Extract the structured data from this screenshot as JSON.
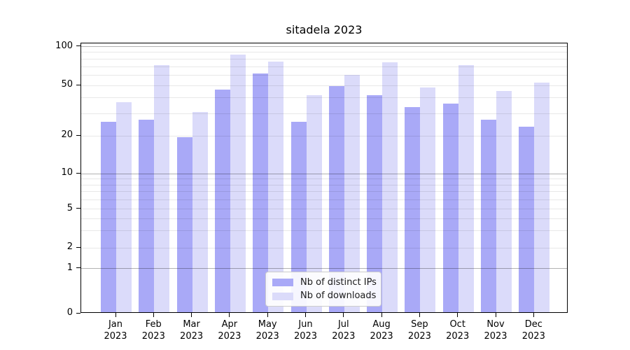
{
  "chart_data": {
    "type": "bar",
    "title": "sitadela 2023",
    "categories": [
      "Jan 2023",
      "Feb 2023",
      "Mar 2023",
      "Apr 2023",
      "May 2023",
      "Jun 2023",
      "Jul 2023",
      "Aug 2023",
      "Sep 2023",
      "Oct 2023",
      "Nov 2023",
      "Dec 2023"
    ],
    "series": [
      {
        "name": "Nb of distinct IPs",
        "color": "#a9a9f7",
        "values": [
          25,
          26,
          19,
          45,
          60,
          25,
          48,
          41,
          33,
          35,
          26,
          23
        ]
      },
      {
        "name": "Nb of downloads",
        "color": "#dbdbfa",
        "values": [
          36,
          70,
          30,
          85,
          75,
          41,
          59,
          74,
          47,
          70,
          44,
          51
        ]
      }
    ],
    "xlabel": "",
    "ylabel": "",
    "yscale": "symlog",
    "y_ticks": [
      0,
      1,
      2,
      5,
      10,
      20,
      50,
      100
    ],
    "y_minor_gridlines": [
      2,
      3,
      4,
      5,
      6,
      7,
      8,
      9,
      20,
      30,
      40,
      50,
      60,
      70,
      80,
      90
    ],
    "y_major_gridlines": [
      1,
      10,
      100
    ],
    "ylim": [
      0,
      106
    ],
    "grid": true,
    "legend_position": "lower center"
  },
  "colors": {
    "grid_major": "rgba(0,0,0,0.30)",
    "grid_minor": "rgba(0,0,0,0.09)",
    "spine": "#000000"
  }
}
